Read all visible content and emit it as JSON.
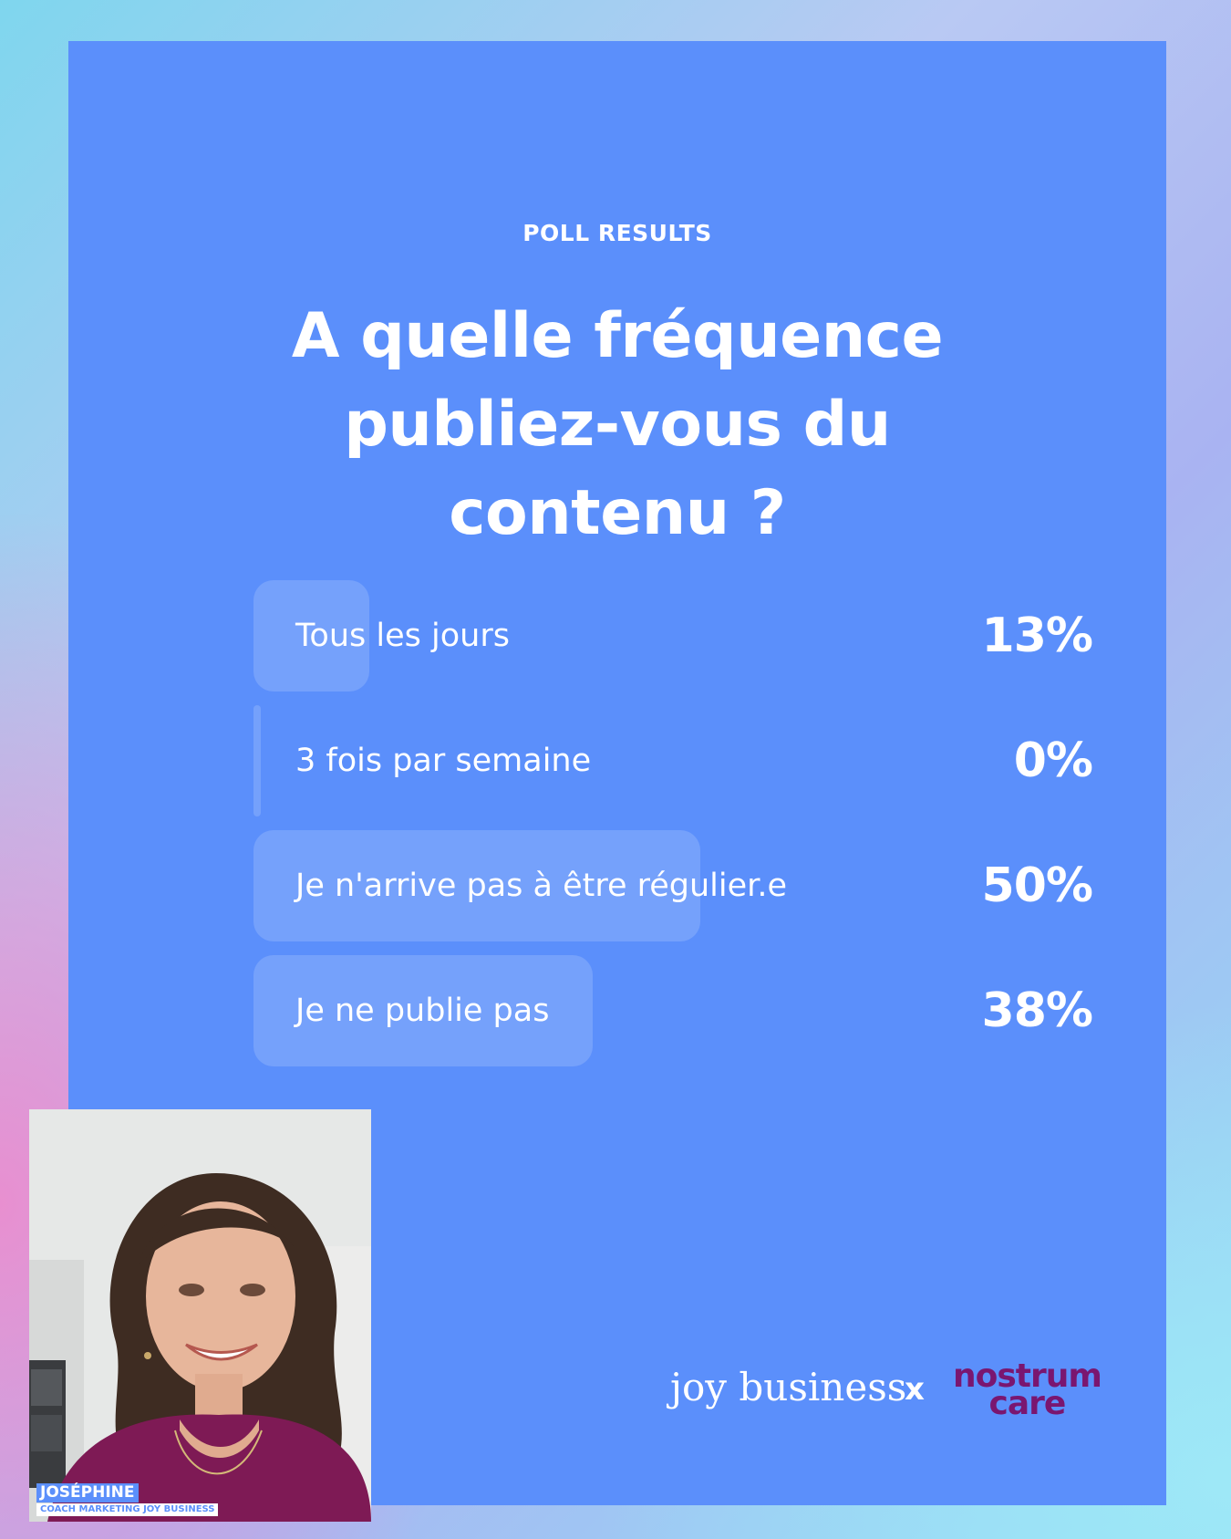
{
  "poll": {
    "eyebrow": "POLL RESULTS",
    "question": "A quelle fréquence\npubliez-vous du\ncontenu ?",
    "options": [
      {
        "label": "Tous les jours",
        "percent_text": "13%",
        "value": 13
      },
      {
        "label": "3 fois par semaine",
        "percent_text": "0%",
        "value": 0
      },
      {
        "label": "Je n'arrive pas à être régulier.e",
        "percent_text": "50%",
        "value": 50
      },
      {
        "label": "Je ne publie pas",
        "percent_text": "38%",
        "value": 38
      }
    ]
  },
  "branding": {
    "joy_business": "joy business",
    "separator": "x",
    "nostrum_line1": "nostrum",
    "nostrum_line2": "care"
  },
  "webcam": {
    "name": "JOSÉPHINE",
    "role": "COACH MARKETING JOY BUSINESS"
  },
  "colors": {
    "card": "#5b8ffb",
    "nostrum": "#7a1670",
    "text": "#ffffff"
  }
}
